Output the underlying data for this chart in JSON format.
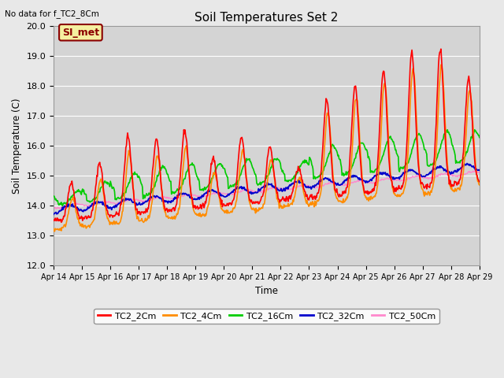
{
  "title": "Soil Temperatures Set 2",
  "subtitle": "No data for f_TC2_8Cm",
  "ylabel": "Soil Temperature (C)",
  "xlabel": "Time",
  "ylim": [
    12.0,
    20.0
  ],
  "yticks": [
    12.0,
    13.0,
    14.0,
    15.0,
    16.0,
    17.0,
    18.0,
    19.0,
    20.0
  ],
  "xtick_labels": [
    "Apr 14",
    "Apr 15",
    "Apr 16",
    "Apr 17",
    "Apr 18",
    "Apr 19",
    "Apr 20",
    "Apr 21",
    "Apr 22",
    "Apr 23",
    "Apr 24",
    "Apr 25",
    "Apr 26",
    "Apr 27",
    "Apr 28",
    "Apr 29"
  ],
  "legend_label": "SI_met",
  "series_colors": {
    "TC2_2Cm": "#ff0000",
    "TC2_4Cm": "#ff8c00",
    "TC2_16Cm": "#00cc00",
    "TC2_32Cm": "#0000cc",
    "TC2_50Cm": "#ff88cc"
  },
  "background_color": "#e8e8e8",
  "plot_bg_color": "#d4d4d4",
  "grid_color": "#ffffff"
}
